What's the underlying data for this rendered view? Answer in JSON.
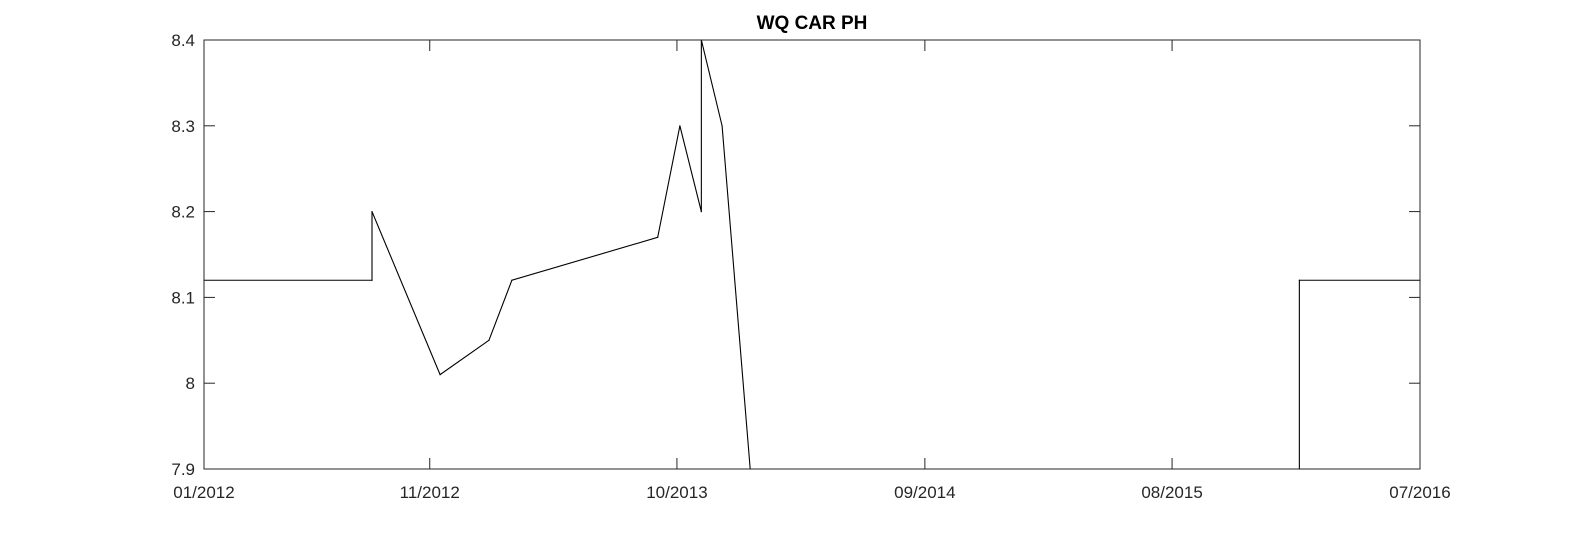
{
  "chart_data": {
    "type": "line",
    "title": "WQ CAR PH",
    "xlabel": "",
    "ylabel": "",
    "x_axis_type": "date",
    "xlim": [
      "2012-01-01",
      "2016-07-01"
    ],
    "ylim": [
      7.9,
      8.4
    ],
    "x_ticks": [
      {
        "date": "2012-01-01",
        "label": "01/2012"
      },
      {
        "date": "2012-11-01",
        "label": "11/2012"
      },
      {
        "date": "2013-10-01",
        "label": "10/2013"
      },
      {
        "date": "2014-09-01",
        "label": "09/2014"
      },
      {
        "date": "2015-08-01",
        "label": "08/2015"
      },
      {
        "date": "2016-07-01",
        "label": "07/2016"
      }
    ],
    "y_ticks": [
      {
        "value": 7.9,
        "label": "7.9"
      },
      {
        "value": 8.0,
        "label": "8"
      },
      {
        "value": 8.1,
        "label": "8.1"
      },
      {
        "value": 8.2,
        "label": "8.2"
      },
      {
        "value": 8.3,
        "label": "8.3"
      },
      {
        "value": 8.4,
        "label": "8.4"
      }
    ],
    "grid": false,
    "line_color": "#000000",
    "series": [
      {
        "points": [
          {
            "x": "2012-01-01",
            "y": 8.12
          },
          {
            "x": "2012-08-15",
            "y": 8.12
          },
          {
            "x": "2012-08-15",
            "y": 8.2
          },
          {
            "x": "2012-11-15",
            "y": 8.01
          },
          {
            "x": "2013-01-20",
            "y": 8.05
          },
          {
            "x": "2013-02-20",
            "y": 8.12
          },
          {
            "x": "2013-09-05",
            "y": 8.17
          },
          {
            "x": "2013-10-05",
            "y": 8.3
          },
          {
            "x": "2013-11-03",
            "y": 8.2
          },
          {
            "x": "2013-11-03",
            "y": 8.4
          },
          {
            "x": "2013-12-01",
            "y": 8.3
          },
          {
            "x": "2014-01-08",
            "y": 7.9
          },
          {
            "x": "2016-01-20",
            "y": 7.9
          },
          {
            "x": "2016-01-20",
            "y": 8.12
          },
          {
            "x": "2016-07-01",
            "y": 8.12
          }
        ]
      }
    ]
  }
}
